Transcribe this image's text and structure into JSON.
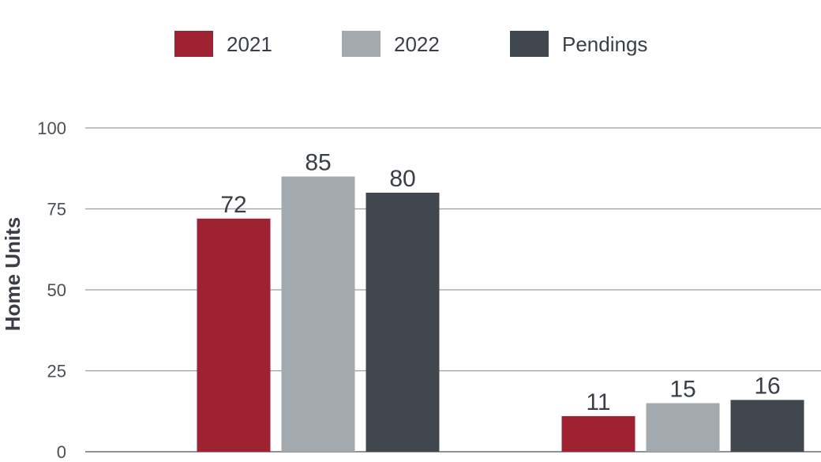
{
  "chart_data": {
    "type": "bar",
    "title": "",
    "xlabel": "",
    "ylabel": "Home Units",
    "ylim": [
      0,
      100
    ],
    "yticks": [
      "0",
      "25",
      "50",
      "75",
      "100"
    ],
    "grid": true,
    "legend_position": "top",
    "categories": [
      "",
      ""
    ],
    "series": [
      {
        "name": "2021",
        "color": "#9e2232",
        "values": [
          72,
          11
        ],
        "labels": [
          "72",
          "11"
        ]
      },
      {
        "name": "2022",
        "color": "#a3aaaf",
        "values": [
          85,
          15
        ],
        "labels": [
          "85",
          "15"
        ]
      },
      {
        "name": "Pendings",
        "color": "#41474e",
        "values": [
          80,
          16
        ],
        "labels": [
          "80",
          "16"
        ]
      }
    ]
  }
}
